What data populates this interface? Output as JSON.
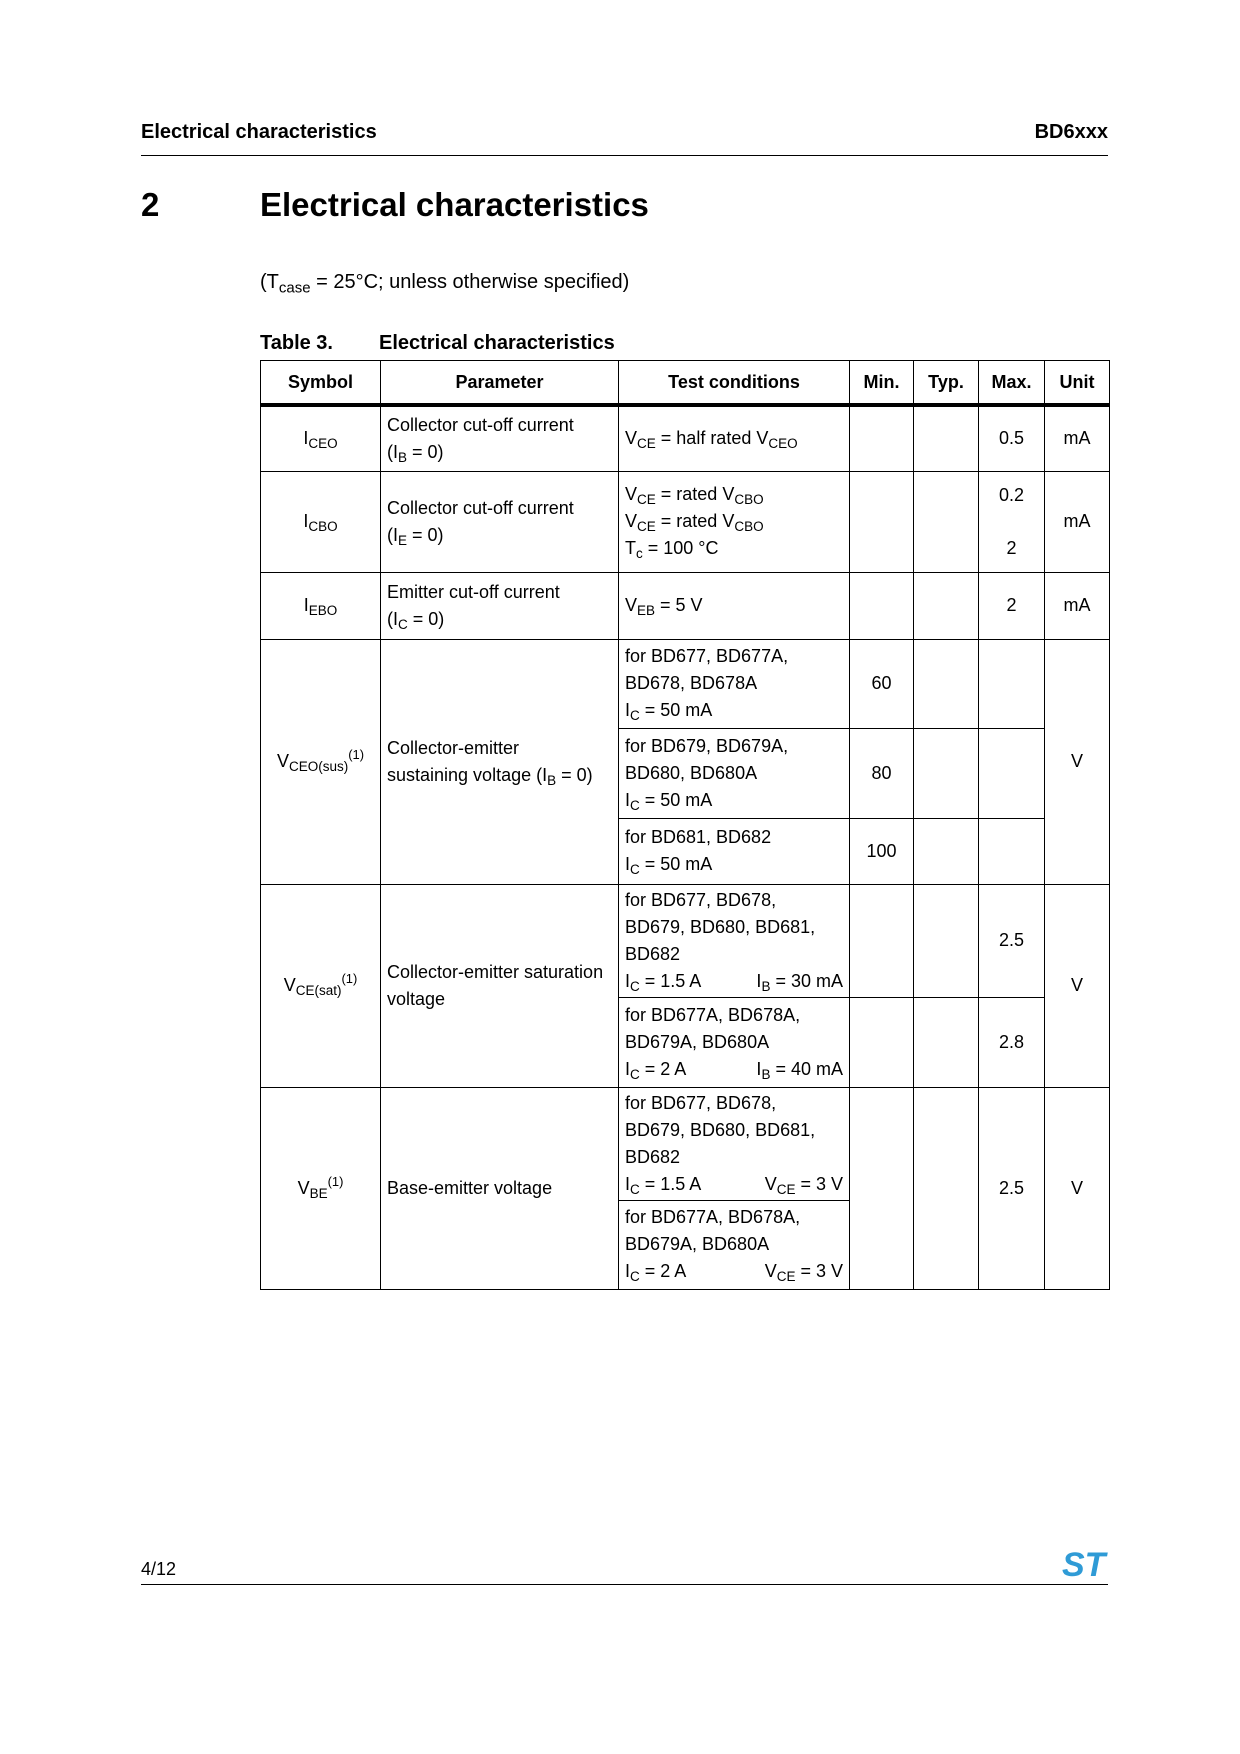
{
  "header": {
    "left": "Electrical characteristics",
    "right": "BD6xxx"
  },
  "section": {
    "number": "2",
    "title": "Electrical characteristics"
  },
  "conditions": [
    [
      "(T",
      ""
    ],
    [
      "case",
      "sub"
    ],
    [
      " = 25°C; unless otherwise specified)",
      ""
    ]
  ],
  "table_caption": {
    "number": "Table 3.",
    "title": "Electrical characteristics"
  },
  "columns": [
    "Symbol",
    "Parameter",
    "Test conditions",
    "Min.",
    "Typ.",
    "Max.",
    "Unit"
  ],
  "rows": {
    "iceo": {
      "symbol": [
        [
          "I",
          ""
        ],
        [
          "CEO",
          "sub"
        ]
      ],
      "parameter": [
        [
          "Collector cut-off current",
          ""
        ],
        [
          "\n",
          ""
        ],
        [
          "(I",
          ""
        ],
        [
          "B",
          "sub"
        ],
        [
          " = 0)",
          ""
        ]
      ],
      "test": [
        [
          "V",
          ""
        ],
        [
          "CE",
          "sub"
        ],
        [
          " = half rated V",
          ""
        ],
        [
          "CEO",
          "sub"
        ]
      ],
      "max": "0.5",
      "unit": "mA"
    },
    "icbo": {
      "symbol": [
        [
          "I",
          ""
        ],
        [
          "CBO",
          "sub"
        ]
      ],
      "parameter": [
        [
          "Collector cut-off current",
          ""
        ],
        [
          "\n",
          ""
        ],
        [
          "(I",
          ""
        ],
        [
          "E",
          "sub"
        ],
        [
          " = 0)",
          ""
        ]
      ],
      "test": [
        [
          "V",
          ""
        ],
        [
          "CE",
          "sub"
        ],
        [
          " = rated V",
          ""
        ],
        [
          "CBO",
          "sub"
        ],
        [
          "\n",
          ""
        ],
        [
          "V",
          ""
        ],
        [
          "CE",
          "sub"
        ],
        [
          " = rated V",
          ""
        ],
        [
          "CBO",
          "sub"
        ],
        [
          "\n",
          ""
        ],
        [
          "T",
          ""
        ],
        [
          "c",
          "sub"
        ],
        [
          " = 100 °C",
          ""
        ]
      ],
      "max": [
        "0.2",
        "2"
      ],
      "unit": "mA"
    },
    "iebo": {
      "symbol": [
        [
          "I",
          ""
        ],
        [
          "EBO",
          "sub"
        ]
      ],
      "parameter": [
        [
          "Emitter cut-off current",
          ""
        ],
        [
          "\n",
          ""
        ],
        [
          "(I",
          ""
        ],
        [
          "C",
          "sub"
        ],
        [
          " = 0)",
          ""
        ]
      ],
      "test": [
        [
          "V",
          ""
        ],
        [
          "EB",
          "sub"
        ],
        [
          " = 5 V",
          ""
        ]
      ],
      "max": "2",
      "unit": "mA"
    },
    "vceo": {
      "symbol": [
        [
          "V",
          ""
        ],
        [
          "CEO(sus)",
          "sub"
        ],
        [
          "(1)",
          "sup"
        ]
      ],
      "parameter": [
        [
          "Collector-emitter",
          ""
        ],
        [
          "\n",
          ""
        ],
        [
          "sustaining voltage (I",
          ""
        ],
        [
          "B",
          "sub"
        ],
        [
          " = 0)",
          ""
        ]
      ],
      "unit": "V",
      "sub": [
        {
          "test": [
            [
              "for BD677, BD677A,",
              ""
            ],
            [
              "\n",
              ""
            ],
            [
              "BD678, BD678A",
              ""
            ],
            [
              "\n",
              ""
            ],
            [
              "I",
              ""
            ],
            [
              "C",
              "sub"
            ],
            [
              " = 50 mA",
              ""
            ]
          ],
          "min": "60"
        },
        {
          "test": [
            [
              "for BD679, BD679A,",
              ""
            ],
            [
              "\n",
              ""
            ],
            [
              "BD680, BD680A",
              ""
            ],
            [
              "\n",
              ""
            ],
            [
              "I",
              ""
            ],
            [
              "C",
              "sub"
            ],
            [
              " = 50 mA",
              ""
            ]
          ],
          "min": "80"
        },
        {
          "test": [
            [
              "for BD681, BD682",
              ""
            ],
            [
              "\n",
              ""
            ],
            [
              "I",
              ""
            ],
            [
              "C",
              "sub"
            ],
            [
              " = 50 mA",
              ""
            ]
          ],
          "min": "100"
        }
      ]
    },
    "vcesat": {
      "symbol": [
        [
          "V",
          ""
        ],
        [
          "CE(sat)",
          "sub"
        ],
        [
          "(1)",
          "sup"
        ]
      ],
      "parameter": [
        [
          "Collector-emitter saturation voltage",
          ""
        ]
      ],
      "unit": "V",
      "sub": [
        {
          "test": [
            [
              "for BD677, BD678,",
              ""
            ],
            [
              "\n",
              ""
            ],
            [
              "BD679, BD680, BD681,",
              ""
            ],
            [
              "\n",
              ""
            ],
            [
              "BD682",
              ""
            ]
          ],
          "left": [
            [
              "I",
              ""
            ],
            [
              "C",
              "sub"
            ],
            [
              " = 1.5 A",
              ""
            ]
          ],
          "right": [
            [
              "I",
              ""
            ],
            [
              "B",
              "sub"
            ],
            [
              " = 30 mA",
              ""
            ]
          ],
          "max": "2.5"
        },
        {
          "test": [
            [
              "for BD677A, BD678A,",
              ""
            ],
            [
              "\n",
              ""
            ],
            [
              "BD679A, BD680A",
              ""
            ]
          ],
          "left": [
            [
              "I",
              ""
            ],
            [
              "C",
              "sub"
            ],
            [
              " = 2 A",
              ""
            ]
          ],
          "right": [
            [
              "I",
              ""
            ],
            [
              "B",
              "sub"
            ],
            [
              " = 40 mA",
              ""
            ]
          ],
          "max": "2.8"
        }
      ]
    },
    "vbe": {
      "symbol": [
        [
          "V",
          ""
        ],
        [
          "BE",
          "sub"
        ],
        [
          "(1)",
          "sup"
        ]
      ],
      "parameter": [
        [
          "Base-emitter voltage",
          ""
        ]
      ],
      "max": "2.5",
      "unit": "V",
      "sub": [
        {
          "test": [
            [
              "for BD677, BD678,",
              ""
            ],
            [
              "\n",
              ""
            ],
            [
              "BD679, BD680, BD681,",
              ""
            ],
            [
              "\n",
              ""
            ],
            [
              "BD682",
              ""
            ]
          ],
          "left": [
            [
              "I",
              ""
            ],
            [
              "C",
              "sub"
            ],
            [
              " = 1.5 A",
              ""
            ]
          ],
          "right": [
            [
              "V",
              ""
            ],
            [
              "CE",
              "sub"
            ],
            [
              " = 3 V",
              ""
            ]
          ]
        },
        {
          "test": [
            [
              "for BD677A, BD678A,",
              ""
            ],
            [
              "\n",
              ""
            ],
            [
              "BD679A, BD680A",
              ""
            ]
          ],
          "left": [
            [
              "I",
              ""
            ],
            [
              "C",
              "sub"
            ],
            [
              " = 2 A",
              ""
            ]
          ],
          "right": [
            [
              "V",
              ""
            ],
            [
              "CE",
              "sub"
            ],
            [
              " = 3 V",
              ""
            ]
          ]
        }
      ]
    }
  },
  "footer": {
    "page": "4/12",
    "logo_text": "ST"
  },
  "colors": {
    "logo": "#2f9bd6",
    "text": "#000000"
  }
}
